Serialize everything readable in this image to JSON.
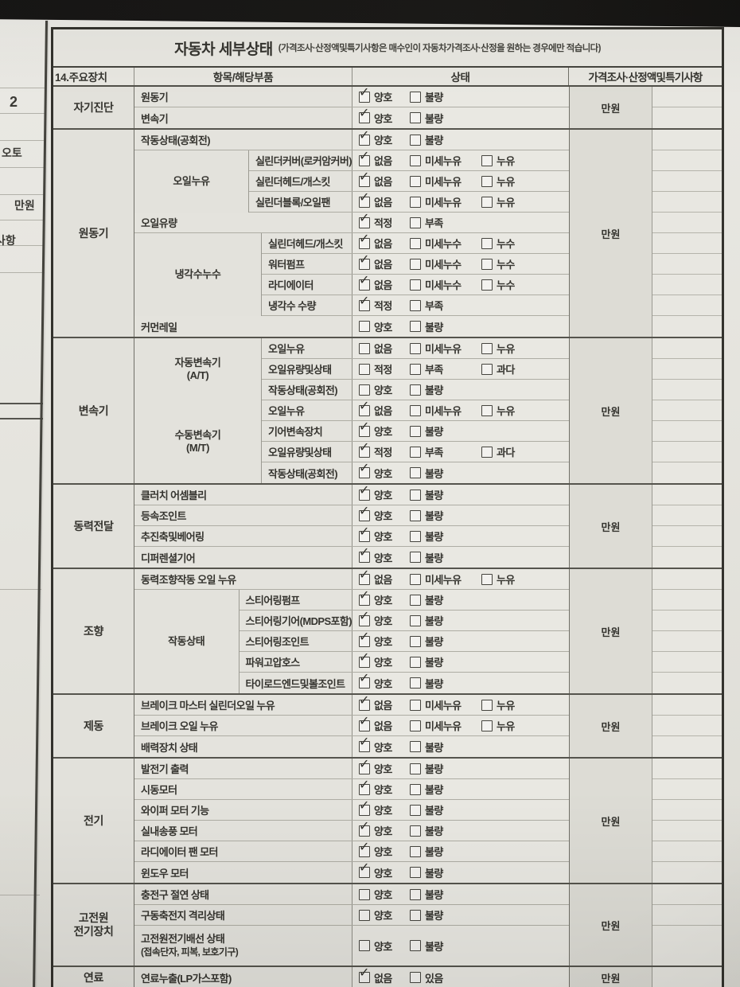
{
  "colors": {
    "background": "#171615",
    "paper": "#e6e5df",
    "ink": "#35342f",
    "border_dark": "#33322d",
    "border_light": "#aeada4",
    "shade": "#dddcd5"
  },
  "left_page": {
    "fragments": [
      {
        "text": "2"
      },
      {
        "text": "오토"
      },
      {
        "text": "만원"
      },
      {
        "text": "사항"
      }
    ]
  },
  "form": {
    "title": "자동차 세부상태",
    "subtitle": "(가격조사·산정액및특기사항은 매수인이 자동차가격조사·산정을 원하는 경우에만 적습니다)",
    "header": {
      "device": "14.주요장치",
      "item": "항목/해당부품",
      "status": "상태",
      "price": "가격조사·산정액및특기사항"
    },
    "check_glyph": "✓",
    "price_unit": "만원",
    "sections": [
      {
        "name": "자기진단",
        "price": "만원",
        "rows": [
          {
            "label": "원동기",
            "options": [
              {
                "label": "양호",
                "checked": true
              },
              {
                "label": "불량",
                "checked": false
              }
            ]
          },
          {
            "label": "변속기",
            "options": [
              {
                "label": "양호",
                "checked": true
              },
              {
                "label": "불량",
                "checked": false
              }
            ]
          }
        ]
      },
      {
        "name": "원동기",
        "price": "만원",
        "rows": [
          {
            "label": "작동상태(공회전)",
            "options": [
              {
                "label": "양호",
                "checked": true
              },
              {
                "label": "불량",
                "checked": false
              }
            ]
          },
          {
            "group": "오일누유",
            "span": 3,
            "label": "실린더커버(로커암커버)",
            "options": [
              {
                "label": "없음",
                "checked": true
              },
              {
                "label": "미세누유",
                "checked": false
              },
              {
                "label": "누유",
                "checked": false
              }
            ]
          },
          {
            "label": "실린더헤드/개스킷",
            "options": [
              {
                "label": "없음",
                "checked": true
              },
              {
                "label": "미세누유",
                "checked": false
              },
              {
                "label": "누유",
                "checked": false
              }
            ]
          },
          {
            "label": "실린더블록/오일팬",
            "options": [
              {
                "label": "없음",
                "checked": true
              },
              {
                "label": "미세누유",
                "checked": false
              },
              {
                "label": "누유",
                "checked": false
              }
            ]
          },
          {
            "label": "오일유량",
            "options": [
              {
                "label": "적정",
                "checked": true
              },
              {
                "label": "부족",
                "checked": false
              }
            ]
          },
          {
            "group": "냉각수누수",
            "span": 4,
            "label": "실린더헤드/개스킷",
            "options": [
              {
                "label": "없음",
                "checked": true
              },
              {
                "label": "미세누수",
                "checked": false
              },
              {
                "label": "누수",
                "checked": false
              }
            ]
          },
          {
            "label": "워터펌프",
            "options": [
              {
                "label": "없음",
                "checked": true
              },
              {
                "label": "미세누수",
                "checked": false
              },
              {
                "label": "누수",
                "checked": false
              }
            ]
          },
          {
            "label": "라디에이터",
            "options": [
              {
                "label": "없음",
                "checked": true
              },
              {
                "label": "미세누수",
                "checked": false
              },
              {
                "label": "누수",
                "checked": false
              }
            ]
          },
          {
            "label": "냉각수 수량",
            "options": [
              {
                "label": "적정",
                "checked": true
              },
              {
                "label": "부족",
                "checked": false
              }
            ]
          },
          {
            "label": "커먼레일",
            "options": [
              {
                "label": "양호",
                "checked": false
              },
              {
                "label": "불량",
                "checked": false
              }
            ]
          }
        ]
      },
      {
        "name": "변속기",
        "price": "만원",
        "rows": [
          {
            "group": "자동변속기\n(A/T)",
            "span": 3,
            "label": "오일누유",
            "options": [
              {
                "label": "없음",
                "checked": false
              },
              {
                "label": "미세누유",
                "checked": false
              },
              {
                "label": "누유",
                "checked": false
              }
            ]
          },
          {
            "label": "오일유량및상태",
            "options": [
              {
                "label": "적정",
                "checked": false
              },
              {
                "label": "부족",
                "checked": false
              },
              {
                "label": "과다",
                "checked": false
              }
            ]
          },
          {
            "label": "작동상태(공회전)",
            "options": [
              {
                "label": "양호",
                "checked": false
              },
              {
                "label": "불량",
                "checked": false
              }
            ]
          },
          {
            "group": "수동변속기\n(M/T)",
            "span": 4,
            "label": "오일누유",
            "options": [
              {
                "label": "없음",
                "checked": true
              },
              {
                "label": "미세누유",
                "checked": false
              },
              {
                "label": "누유",
                "checked": false
              }
            ]
          },
          {
            "label": "기어변속장치",
            "options": [
              {
                "label": "양호",
                "checked": true
              },
              {
                "label": "불량",
                "checked": false
              }
            ]
          },
          {
            "label": "오일유량및상태",
            "options": [
              {
                "label": "적정",
                "checked": true
              },
              {
                "label": "부족",
                "checked": false
              },
              {
                "label": "과다",
                "checked": false
              }
            ]
          },
          {
            "label": "작동상태(공회전)",
            "options": [
              {
                "label": "양호",
                "checked": true
              },
              {
                "label": "불량",
                "checked": false
              }
            ]
          }
        ]
      },
      {
        "name": "동력전달",
        "price": "만원",
        "rows": [
          {
            "label": "클러치 어셈블리",
            "options": [
              {
                "label": "양호",
                "checked": true
              },
              {
                "label": "불량",
                "checked": false
              }
            ]
          },
          {
            "label": "등속조인트",
            "options": [
              {
                "label": "양호",
                "checked": true
              },
              {
                "label": "불량",
                "checked": false
              }
            ]
          },
          {
            "label": "추진축및베어링",
            "options": [
              {
                "label": "양호",
                "checked": true
              },
              {
                "label": "불량",
                "checked": false
              }
            ]
          },
          {
            "label": "디퍼렌셜기어",
            "options": [
              {
                "label": "양호",
                "checked": true
              },
              {
                "label": "불량",
                "checked": false
              }
            ]
          }
        ]
      },
      {
        "name": "조향",
        "price": "만원",
        "rows": [
          {
            "label": "동력조향작동 오일 누유",
            "options": [
              {
                "label": "없음",
                "checked": true
              },
              {
                "label": "미세누유",
                "checked": false
              },
              {
                "label": "누유",
                "checked": false
              }
            ]
          },
          {
            "group": "작동상태",
            "span": 5,
            "label": "스티어링펌프",
            "options": [
              {
                "label": "양호",
                "checked": true
              },
              {
                "label": "불량",
                "checked": false
              }
            ]
          },
          {
            "label": "스티어링기어(MDPS포함)",
            "options": [
              {
                "label": "양호",
                "checked": true
              },
              {
                "label": "불량",
                "checked": false
              }
            ]
          },
          {
            "label": "스티어링조인트",
            "options": [
              {
                "label": "양호",
                "checked": true
              },
              {
                "label": "불량",
                "checked": false
              }
            ]
          },
          {
            "label": "파워고압호스",
            "options": [
              {
                "label": "양호",
                "checked": true
              },
              {
                "label": "불량",
                "checked": false
              }
            ]
          },
          {
            "label": "타이로드엔드및볼조인트",
            "options": [
              {
                "label": "양호",
                "checked": true
              },
              {
                "label": "불량",
                "checked": false
              }
            ]
          }
        ]
      },
      {
        "name": "제동",
        "price": "만원",
        "rows": [
          {
            "label": "브레이크 마스터 실린더오일 누유",
            "options": [
              {
                "label": "없음",
                "checked": true
              },
              {
                "label": "미세누유",
                "checked": false
              },
              {
                "label": "누유",
                "checked": false
              }
            ]
          },
          {
            "label": "브레이크 오일 누유",
            "options": [
              {
                "label": "없음",
                "checked": true
              },
              {
                "label": "미세누유",
                "checked": false
              },
              {
                "label": "누유",
                "checked": false
              }
            ]
          },
          {
            "label": "배력장치 상태",
            "options": [
              {
                "label": "양호",
                "checked": true
              },
              {
                "label": "불량",
                "checked": false
              }
            ]
          }
        ]
      },
      {
        "name": "전기",
        "price": "만원",
        "rows": [
          {
            "label": "발전기 출력",
            "options": [
              {
                "label": "양호",
                "checked": true
              },
              {
                "label": "불량",
                "checked": false
              }
            ]
          },
          {
            "label": "시동모터",
            "options": [
              {
                "label": "양호",
                "checked": true
              },
              {
                "label": "불량",
                "checked": false
              }
            ]
          },
          {
            "label": "와이퍼 모터 기능",
            "options": [
              {
                "label": "양호",
                "checked": true
              },
              {
                "label": "불량",
                "checked": false
              }
            ]
          },
          {
            "label": "실내송풍 모터",
            "options": [
              {
                "label": "양호",
                "checked": true
              },
              {
                "label": "불량",
                "checked": false
              }
            ]
          },
          {
            "label": "라디에이터 팬 모터",
            "options": [
              {
                "label": "양호",
                "checked": true
              },
              {
                "label": "불량",
                "checked": false
              }
            ]
          },
          {
            "label": "윈도우 모터",
            "options": [
              {
                "label": "양호",
                "checked": true
              },
              {
                "label": "불량",
                "checked": false
              }
            ]
          }
        ]
      },
      {
        "name": "고전원\n전기장치",
        "price": "만원",
        "rows": [
          {
            "label": "충전구 절연 상태",
            "options": [
              {
                "label": "양호",
                "checked": false
              },
              {
                "label": "불량",
                "checked": false
              }
            ]
          },
          {
            "label": "구동축전지 격리상태",
            "options": [
              {
                "label": "양호",
                "checked": false
              },
              {
                "label": "불량",
                "checked": false
              }
            ]
          },
          {
            "label": "고전원전기배선 상태",
            "sublabel": "(접속단자, 피복, 보호기구)",
            "tall": true,
            "options": [
              {
                "label": "양호",
                "checked": false
              },
              {
                "label": "불량",
                "checked": false
              }
            ]
          }
        ]
      },
      {
        "name": "연료",
        "price": "만원",
        "rows": [
          {
            "label": "연료누출(LP가스포함)",
            "options": [
              {
                "label": "없음",
                "checked": true
              },
              {
                "label": "있음",
                "checked": false
              }
            ]
          }
        ]
      }
    ]
  }
}
